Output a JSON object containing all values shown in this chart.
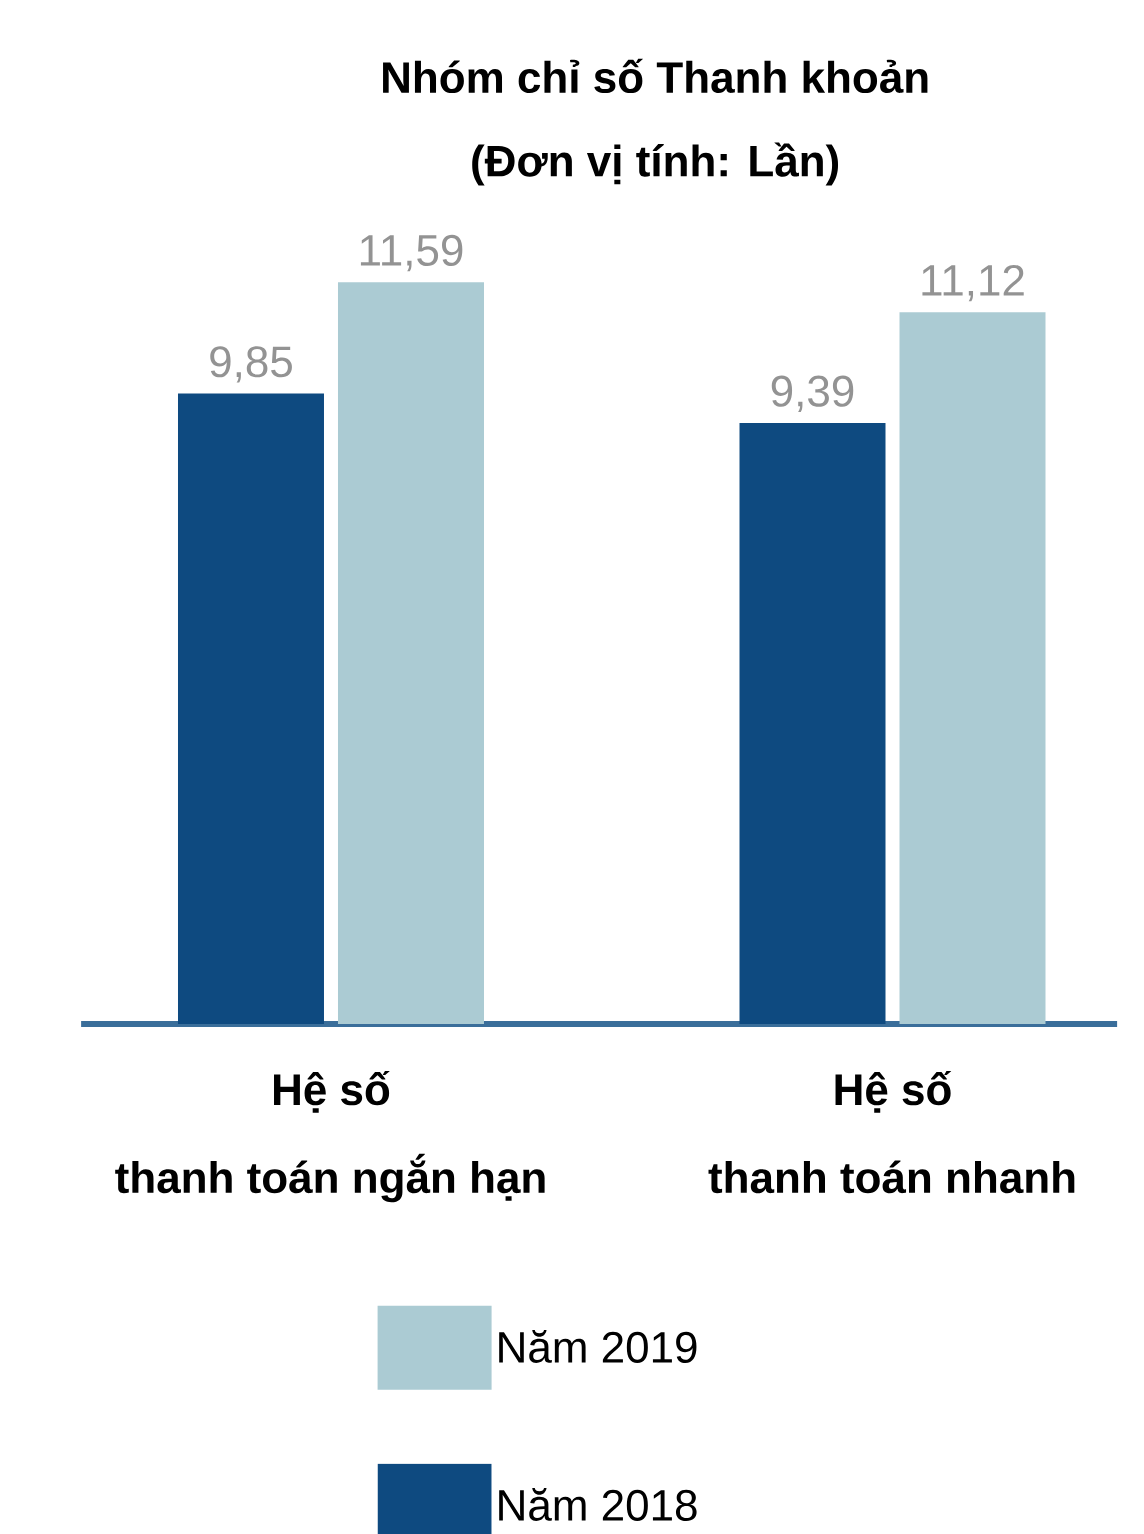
{
  "chart_data": {
    "type": "bar",
    "title": "Nhóm chỉ số Thanh khoản",
    "subtitle": "(Đơn vị tính: Lần)",
    "categories": [
      "Hệ số\nthanh toán ngắn hạn",
      "Hệ số\nthanh toán nhanh"
    ],
    "series": [
      {
        "name": "Năm 2018",
        "color": "#0e4a80",
        "values": [
          9.85,
          9.39
        ],
        "value_labels": [
          "9,85",
          "9,39"
        ]
      },
      {
        "name": "Năm 2019",
        "color": "#abcbd3",
        "values": [
          11.59,
          11.12
        ],
        "value_labels": [
          "11,59",
          "11,12"
        ]
      }
    ],
    "legend": "bottom",
    "grid": false
  }
}
